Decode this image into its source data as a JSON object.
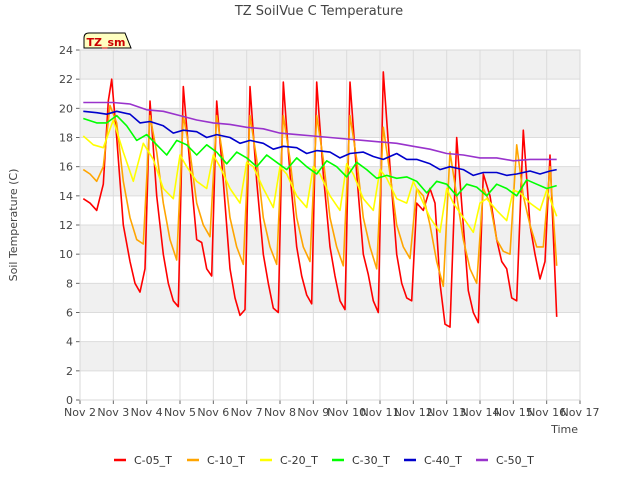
{
  "chart_data": {
    "type": "line",
    "title": "TZ SoilVue C Temperature",
    "xlabel": "Time",
    "ylabel": "Soil Temperature (C)",
    "badge": "TZ_sm",
    "ylim": [
      0,
      24
    ],
    "xlim": [
      2,
      17
    ],
    "y_ticks": [
      0,
      2,
      4,
      6,
      8,
      10,
      12,
      14,
      16,
      18,
      20,
      22,
      24
    ],
    "x_ticks": [
      {
        "v": 2,
        "label": "Nov 2"
      },
      {
        "v": 3,
        "label": "Nov 3"
      },
      {
        "v": 4,
        "label": "Nov 4"
      },
      {
        "v": 5,
        "label": "Nov 5"
      },
      {
        "v": 6,
        "label": "Nov 6"
      },
      {
        "v": 7,
        "label": "Nov 7"
      },
      {
        "v": 8,
        "label": "Nov 8"
      },
      {
        "v": 9,
        "label": "Nov 9"
      },
      {
        "v": 10,
        "label": "Nov 10"
      },
      {
        "v": 11,
        "label": "Nov 11"
      },
      {
        "v": 12,
        "label": "Nov 12"
      },
      {
        "v": 13,
        "label": "Nov 13"
      },
      {
        "v": 14,
        "label": "Nov 14"
      },
      {
        "v": 15,
        "label": "Nov 15"
      },
      {
        "v": 16,
        "label": "Nov 16"
      },
      {
        "v": 17,
        "label": "Nov 17"
      }
    ],
    "grid": true,
    "legend_position": "bottom",
    "series": [
      {
        "name": "C-05_T",
        "color": "#ff0000",
        "x": [
          2.1,
          2.3,
          2.5,
          2.7,
          2.85,
          2.95,
          3.1,
          3.3,
          3.5,
          3.65,
          3.8,
          3.95,
          4.1,
          4.3,
          4.5,
          4.65,
          4.8,
          4.95,
          5.1,
          5.3,
          5.5,
          5.65,
          5.8,
          5.95,
          6.1,
          6.3,
          6.5,
          6.65,
          6.8,
          6.95,
          7.1,
          7.3,
          7.5,
          7.65,
          7.8,
          7.95,
          8.1,
          8.3,
          8.5,
          8.65,
          8.8,
          8.95,
          9.1,
          9.3,
          9.5,
          9.65,
          9.8,
          9.95,
          10.1,
          10.3,
          10.5,
          10.65,
          10.8,
          10.95,
          11.1,
          11.3,
          11.5,
          11.65,
          11.8,
          11.95,
          12.1,
          12.3,
          12.5,
          12.65,
          12.8,
          12.95,
          13.1,
          13.3,
          13.5,
          13.65,
          13.8,
          13.95,
          14.1,
          14.3,
          14.5,
          14.65,
          14.8,
          14.95,
          15.1,
          15.3,
          15.5,
          15.65,
          15.8,
          15.95,
          16.1,
          16.3
        ],
        "y": [
          13.8,
          13.5,
          13.0,
          14.8,
          20.5,
          22.0,
          18.0,
          12.0,
          9.5,
          8.0,
          7.4,
          9.0,
          20.5,
          14.0,
          10.0,
          8.0,
          6.8,
          6.4,
          21.5,
          16.0,
          11.0,
          10.8,
          9.0,
          8.5,
          20.5,
          15.0,
          9.0,
          7.0,
          5.8,
          6.2,
          21.5,
          15.0,
          10.0,
          8.0,
          6.3,
          6.0,
          21.8,
          15.5,
          10.5,
          8.5,
          7.2,
          6.6,
          21.8,
          15.5,
          10.5,
          8.5,
          6.8,
          6.2,
          21.8,
          15.5,
          10.0,
          8.6,
          6.8,
          6.0,
          22.5,
          16.0,
          10.0,
          8.0,
          7.0,
          6.8,
          13.5,
          13.0,
          14.5,
          13.5,
          8.0,
          5.2,
          5.0,
          18.0,
          12.0,
          7.5,
          6.0,
          5.3,
          15.5,
          14.0,
          11.0,
          9.5,
          9.0,
          7.0,
          6.8,
          18.5,
          12.0,
          10.0,
          8.3,
          9.5,
          16.8,
          5.7
        ]
      },
      {
        "name": "C-10_T",
        "color": "#ffa500",
        "x": [
          2.1,
          2.3,
          2.5,
          2.7,
          2.9,
          3.1,
          3.3,
          3.5,
          3.7,
          3.9,
          4.1,
          4.3,
          4.5,
          4.7,
          4.9,
          5.1,
          5.3,
          5.5,
          5.7,
          5.9,
          6.1,
          6.3,
          6.5,
          6.7,
          6.9,
          7.1,
          7.3,
          7.5,
          7.7,
          7.9,
          8.1,
          8.3,
          8.5,
          8.7,
          8.9,
          9.1,
          9.3,
          9.5,
          9.7,
          9.9,
          10.1,
          10.3,
          10.5,
          10.7,
          10.9,
          11.1,
          11.3,
          11.5,
          11.7,
          11.9,
          12.1,
          12.3,
          12.5,
          12.7,
          12.9,
          13.1,
          13.3,
          13.5,
          13.7,
          13.9,
          14.1,
          14.3,
          14.5,
          14.7,
          14.9,
          15.1,
          15.3,
          15.5,
          15.7,
          15.9,
          16.1,
          16.3
        ],
        "y": [
          15.8,
          15.5,
          15.0,
          16.0,
          20.2,
          19.0,
          15.0,
          12.5,
          11.0,
          10.7,
          19.5,
          17.0,
          13.5,
          11.0,
          9.6,
          19.5,
          17.0,
          13.5,
          12.0,
          11.2,
          19.5,
          16.5,
          12.5,
          10.5,
          9.3,
          19.5,
          16.5,
          12.5,
          10.5,
          9.3,
          19.5,
          16.5,
          12.5,
          10.5,
          9.5,
          19.5,
          16.5,
          12.5,
          10.5,
          9.2,
          19.5,
          16.5,
          12.5,
          10.5,
          9.0,
          18.7,
          15.5,
          12.0,
          10.5,
          9.7,
          14.5,
          14.0,
          12.0,
          9.5,
          7.8,
          17.0,
          14.0,
          11.0,
          9.0,
          8.0,
          14.5,
          13.5,
          11.0,
          10.2,
          10.0,
          17.5,
          14.0,
          12.0,
          10.5,
          10.5,
          16.0,
          9.2
        ]
      },
      {
        "name": "C-20_T",
        "color": "#ffff00",
        "x": [
          2.1,
          2.4,
          2.7,
          3.0,
          3.3,
          3.6,
          3.9,
          4.2,
          4.5,
          4.8,
          5.0,
          5.2,
          5.5,
          5.8,
          6.0,
          6.2,
          6.5,
          6.8,
          7.0,
          7.2,
          7.5,
          7.8,
          8.0,
          8.2,
          8.5,
          8.8,
          9.0,
          9.2,
          9.5,
          9.8,
          10.0,
          10.2,
          10.5,
          10.8,
          11.0,
          11.2,
          11.5,
          11.8,
          12.0,
          12.2,
          12.5,
          12.8,
          13.0,
          13.2,
          13.5,
          13.8,
          14.0,
          14.2,
          14.5,
          14.8,
          15.0,
          15.2,
          15.5,
          15.8,
          16.0,
          16.3
        ],
        "y": [
          18.1,
          17.5,
          17.3,
          19.2,
          17.0,
          15.0,
          17.6,
          16.5,
          14.5,
          13.8,
          16.8,
          16.0,
          15.0,
          14.5,
          16.8,
          16.0,
          14.5,
          13.5,
          16.3,
          16.0,
          14.5,
          13.2,
          16.0,
          15.5,
          14.0,
          13.2,
          16.0,
          15.5,
          14.0,
          13.0,
          16.2,
          15.5,
          13.8,
          13.0,
          15.8,
          15.2,
          13.8,
          13.5,
          15.0,
          14.0,
          12.5,
          11.5,
          14.5,
          13.5,
          12.5,
          11.5,
          13.5,
          13.8,
          13.0,
          12.3,
          14.4,
          14.2,
          13.5,
          13.0,
          14.4,
          12.6
        ]
      },
      {
        "name": "C-30_T",
        "color": "#00ff00",
        "x": [
          2.1,
          2.5,
          2.8,
          3.1,
          3.4,
          3.7,
          4.0,
          4.3,
          4.6,
          4.9,
          5.2,
          5.5,
          5.8,
          6.1,
          6.4,
          6.7,
          7.0,
          7.3,
          7.6,
          7.9,
          8.2,
          8.5,
          8.8,
          9.1,
          9.4,
          9.7,
          10.0,
          10.3,
          10.6,
          10.9,
          11.2,
          11.5,
          11.8,
          12.1,
          12.4,
          12.7,
          13.0,
          13.3,
          13.6,
          13.9,
          14.2,
          14.5,
          14.8,
          15.1,
          15.4,
          15.7,
          16.0,
          16.3
        ],
        "y": [
          19.3,
          19.0,
          19.0,
          19.5,
          18.8,
          17.8,
          18.2,
          17.5,
          16.8,
          17.8,
          17.5,
          16.8,
          17.5,
          17.0,
          16.2,
          17.0,
          16.6,
          16.0,
          16.8,
          16.3,
          15.8,
          16.6,
          16.0,
          15.5,
          16.4,
          16.0,
          15.3,
          16.3,
          15.8,
          15.2,
          15.4,
          15.2,
          15.3,
          15.0,
          14.2,
          15.0,
          14.8,
          14.0,
          14.8,
          14.6,
          14.0,
          14.8,
          14.5,
          14.0,
          15.1,
          14.8,
          14.5,
          14.7
        ]
      },
      {
        "name": "C-40_T",
        "color": "#0000cc",
        "x": [
          2.1,
          2.5,
          2.8,
          3.1,
          3.5,
          3.8,
          4.1,
          4.5,
          4.8,
          5.1,
          5.5,
          5.8,
          6.1,
          6.5,
          6.8,
          7.1,
          7.5,
          7.8,
          8.1,
          8.5,
          8.8,
          9.1,
          9.5,
          9.8,
          10.1,
          10.5,
          10.8,
          11.1,
          11.5,
          11.8,
          12.1,
          12.5,
          12.8,
          13.1,
          13.5,
          13.8,
          14.1,
          14.5,
          14.8,
          15.1,
          15.5,
          15.8,
          16.1,
          16.3
        ],
        "y": [
          19.8,
          19.7,
          19.6,
          19.8,
          19.6,
          19.0,
          19.1,
          18.8,
          18.3,
          18.5,
          18.4,
          18.0,
          18.2,
          18.0,
          17.6,
          17.8,
          17.6,
          17.2,
          17.4,
          17.3,
          16.9,
          17.1,
          17.0,
          16.6,
          16.9,
          17.0,
          16.7,
          16.5,
          16.9,
          16.5,
          16.5,
          16.2,
          15.8,
          16.0,
          15.8,
          15.4,
          15.6,
          15.6,
          15.4,
          15.5,
          15.7,
          15.5,
          15.7,
          15.8
        ]
      },
      {
        "name": "C-50_T",
        "color": "#9933cc",
        "x": [
          2.1,
          2.5,
          3.0,
          3.5,
          4.0,
          4.5,
          5.0,
          5.5,
          6.0,
          6.5,
          7.0,
          7.5,
          8.0,
          8.5,
          9.0,
          9.5,
          10.0,
          10.5,
          11.0,
          11.5,
          12.0,
          12.5,
          13.0,
          13.5,
          14.0,
          14.5,
          15.0,
          15.5,
          16.0,
          16.3
        ],
        "y": [
          20.4,
          20.4,
          20.4,
          20.3,
          19.9,
          19.8,
          19.5,
          19.2,
          19.0,
          18.9,
          18.7,
          18.6,
          18.3,
          18.2,
          18.1,
          18.0,
          17.9,
          17.8,
          17.7,
          17.6,
          17.4,
          17.2,
          16.9,
          16.8,
          16.6,
          16.6,
          16.4,
          16.5,
          16.5,
          16.5
        ]
      }
    ]
  }
}
